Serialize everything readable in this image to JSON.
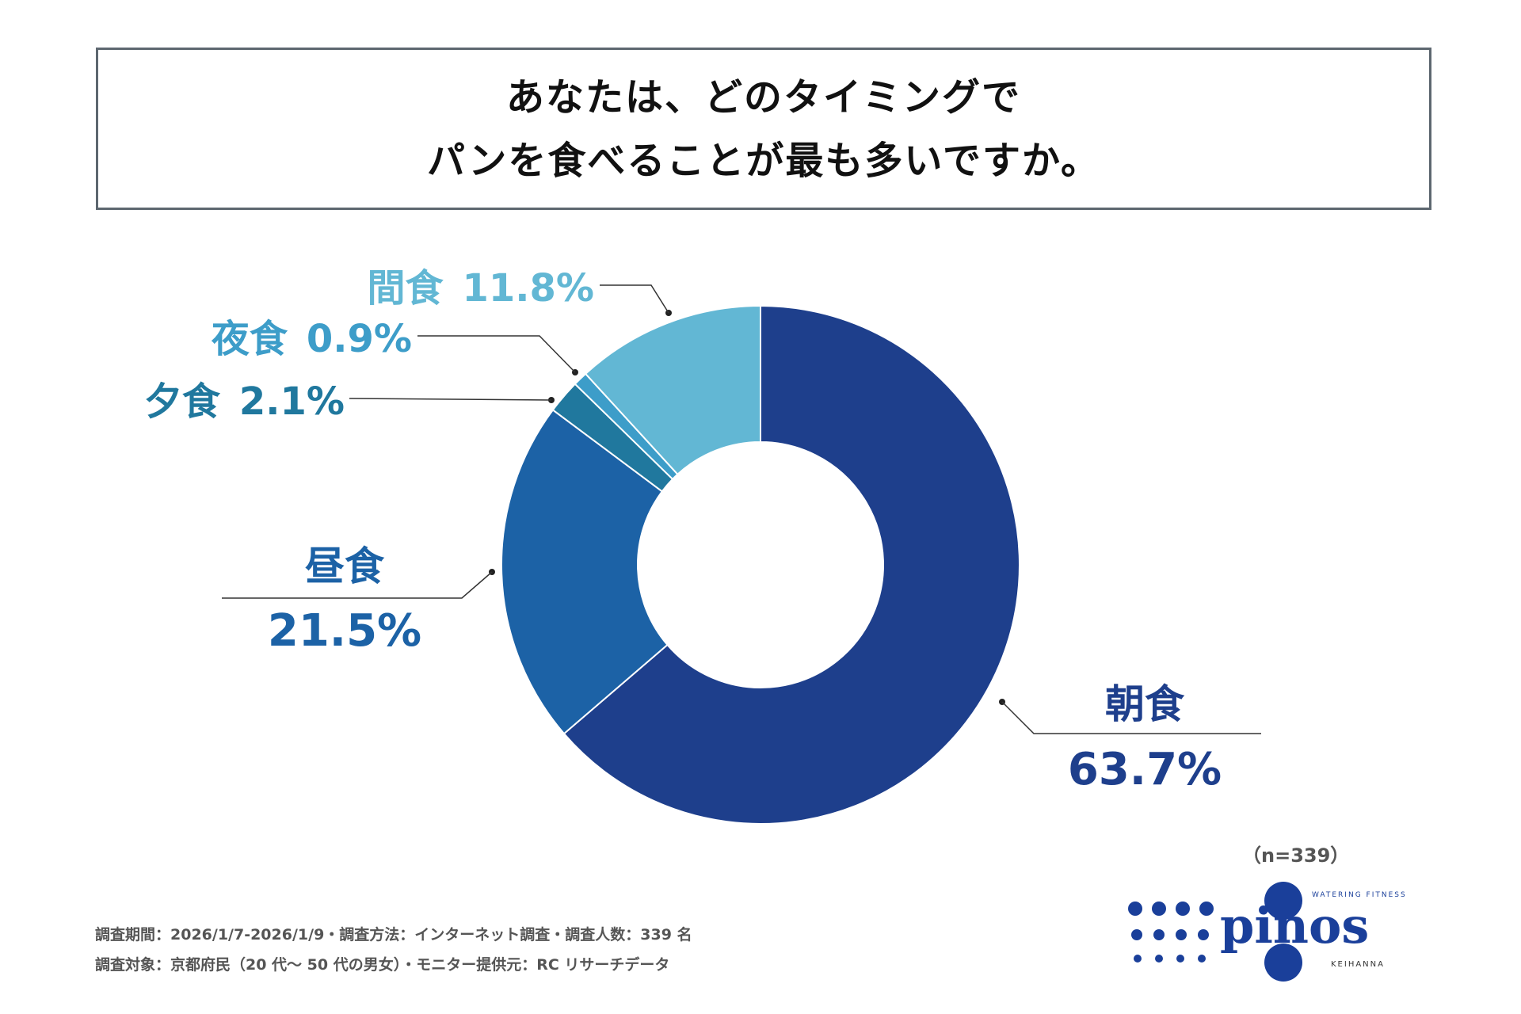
{
  "title": {
    "line1": "あなたは、どのタイミングで",
    "line2": "パンを食べることが最も多いですか。"
  },
  "chart_data": {
    "type": "pie",
    "donut": true,
    "categories": [
      "朝食",
      "昼食",
      "夕食",
      "夜食",
      "間食"
    ],
    "values": [
      63.7,
      21.5,
      2.1,
      0.9,
      11.8
    ],
    "value_labels": [
      "63.7%",
      "21.5%",
      "2.1%",
      "0.9%",
      "11.8%"
    ],
    "colors": [
      "#1e3f8c",
      "#1c62a6",
      "#20789e",
      "#3d9dc9",
      "#62b7d4"
    ],
    "label_colors": [
      "#1e3f8c",
      "#1c62a6",
      "#20789e",
      "#3d9dc9",
      "#62b7d4"
    ]
  },
  "sample_size": "（n=339）",
  "footer": {
    "line1": "調査期間：2026/1/7-2026/1/9・調査方法：インターネット調査・調査人数：339 名",
    "line2": "調査対象：京都府民（20 代～ 50 代の男女）・モニター提供元：RC リサーチデータ"
  },
  "logo": {
    "name": "pinos",
    "tagline": "WATERING FITNESS",
    "sub": "KEIHANNA",
    "color": "#1a3f9a"
  }
}
